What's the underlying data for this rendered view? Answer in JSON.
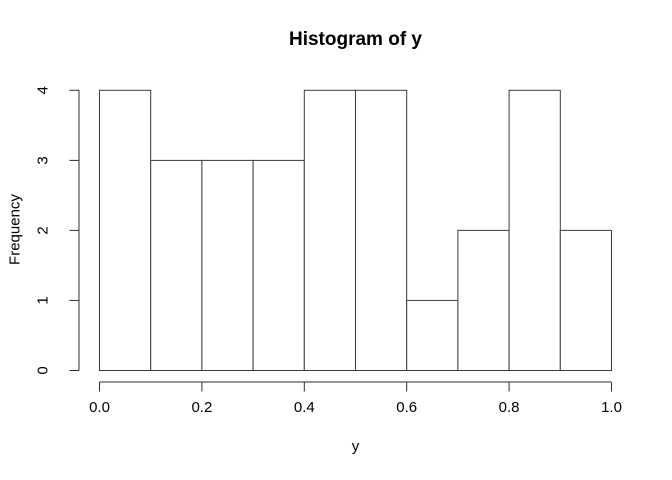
{
  "chart_data": {
    "type": "bar",
    "subtype": "histogram",
    "title": "Histogram of y",
    "xlabel": "y",
    "ylabel": "Frequency",
    "bin_edges": [
      0.0,
      0.1,
      0.2,
      0.3,
      0.4,
      0.5,
      0.6,
      0.7,
      0.8,
      0.9,
      1.0
    ],
    "values": [
      4,
      3,
      3,
      3,
      4,
      4,
      1,
      2,
      4,
      2
    ],
    "x_ticks": [
      0.0,
      0.2,
      0.4,
      0.6,
      0.8,
      1.0
    ],
    "x_tick_labels": [
      "0.0",
      "0.2",
      "0.4",
      "0.6",
      "0.8",
      "1.0"
    ],
    "y_ticks": [
      0,
      1,
      2,
      3,
      4
    ],
    "y_tick_labels": [
      "0",
      "1",
      "2",
      "3",
      "4"
    ],
    "xlim": [
      0,
      1
    ],
    "ylim": [
      0,
      4
    ],
    "grid": false,
    "legend": null,
    "colors": {
      "background": "#ffffff",
      "bar_fill": "#ffffff",
      "bar_border": "#3a3a3a",
      "axis": "#2e2e2e",
      "text": "#000000"
    }
  }
}
